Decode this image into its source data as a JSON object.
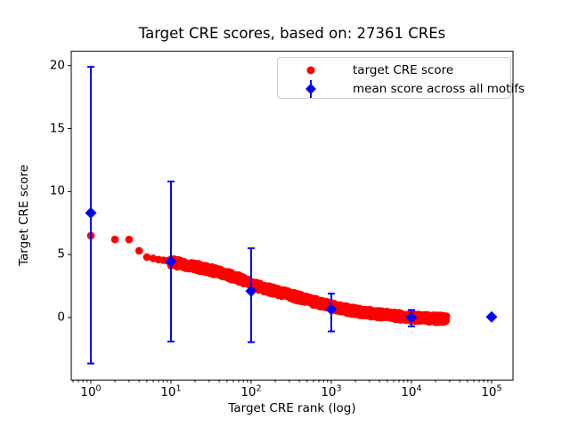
{
  "figure": {
    "title": "Target CRE scores, based on: 27361 CREs",
    "xlabel": "Target CRE rank (log)",
    "ylabel": "Target CRE score"
  },
  "legend": {
    "items": [
      {
        "label": "target CRE score",
        "marker": "red-dot",
        "color": "#ff0000"
      },
      {
        "label": "mean score across all motifs",
        "marker": "blue-diamond-errorbar",
        "color": "#0000ff"
      }
    ]
  },
  "chart_data": {
    "type": "scatter",
    "title": "Target CRE scores, based on: 27361 CREs",
    "xlabel": "Target CRE rank (log)",
    "ylabel": "Target CRE score",
    "x_scale": "log",
    "grid": false,
    "legend_position": "upper center-right inside axes",
    "n_cres": 27361,
    "xlim": [
      0.57,
      185000
    ],
    "ylim": [
      -4.96,
      21.14
    ],
    "x_tick_labels": [
      {
        "base": "10",
        "exp": "0"
      },
      {
        "base": "10",
        "exp": "1"
      },
      {
        "base": "10",
        "exp": "2"
      },
      {
        "base": "10",
        "exp": "3"
      },
      {
        "base": "10",
        "exp": "4"
      },
      {
        "base": "10",
        "exp": "5"
      }
    ],
    "x_tick_values": [
      1,
      10,
      100,
      1000,
      10000,
      100000
    ],
    "y_ticks": [
      0,
      5,
      10,
      15,
      20
    ],
    "series": [
      {
        "name": "target CRE score",
        "type": "scatter",
        "color": "#ff0000",
        "marker": "circle",
        "note": "27361 points forming a dense decreasing band; anchors are [rank, score] read from the plot",
        "anchors": [
          [
            1,
            6.5
          ],
          [
            2,
            6.2
          ],
          [
            3,
            6.2
          ],
          [
            4,
            5.3
          ],
          [
            5,
            4.8
          ],
          [
            6,
            4.7
          ],
          [
            7,
            4.6
          ],
          [
            8,
            4.55
          ],
          [
            9,
            4.5
          ],
          [
            10,
            4.4
          ],
          [
            15,
            4.2
          ],
          [
            20,
            4.05
          ],
          [
            30,
            3.8
          ],
          [
            50,
            3.4
          ],
          [
            70,
            3.1
          ],
          [
            100,
            2.65
          ],
          [
            150,
            2.3
          ],
          [
            200,
            2.1
          ],
          [
            300,
            1.8
          ],
          [
            500,
            1.4
          ],
          [
            700,
            1.15
          ],
          [
            1000,
            0.9
          ],
          [
            1500,
            0.65
          ],
          [
            2000,
            0.5
          ],
          [
            3000,
            0.35
          ],
          [
            5000,
            0.2
          ],
          [
            7000,
            0.1
          ],
          [
            10000,
            0.0
          ],
          [
            15000,
            -0.05
          ],
          [
            20000,
            -0.1
          ],
          [
            27361,
            -0.12
          ]
        ],
        "individual_ranks_max": 9,
        "band_start_rank": 10,
        "band_end_rank": 27361,
        "band_jitter": 0.28,
        "band_points": 1200
      },
      {
        "name": "mean score across all motifs",
        "type": "errorbar",
        "color": "#0000ff",
        "marker": "diamond",
        "points": [
          {
            "x": 1,
            "y": 8.3,
            "lo": -3.65,
            "hi": 19.9
          },
          {
            "x": 10,
            "y": 4.45,
            "lo": -1.9,
            "hi": 10.8
          },
          {
            "x": 100,
            "y": 2.1,
            "lo": -1.95,
            "hi": 5.5
          },
          {
            "x": 1000,
            "y": 0.65,
            "lo": -1.1,
            "hi": 1.9
          },
          {
            "x": 10000,
            "y": 0.0,
            "lo": -0.7,
            "hi": 0.6
          },
          {
            "x": 100000,
            "y": 0.05,
            "lo": null,
            "hi": null
          }
        ]
      }
    ]
  }
}
